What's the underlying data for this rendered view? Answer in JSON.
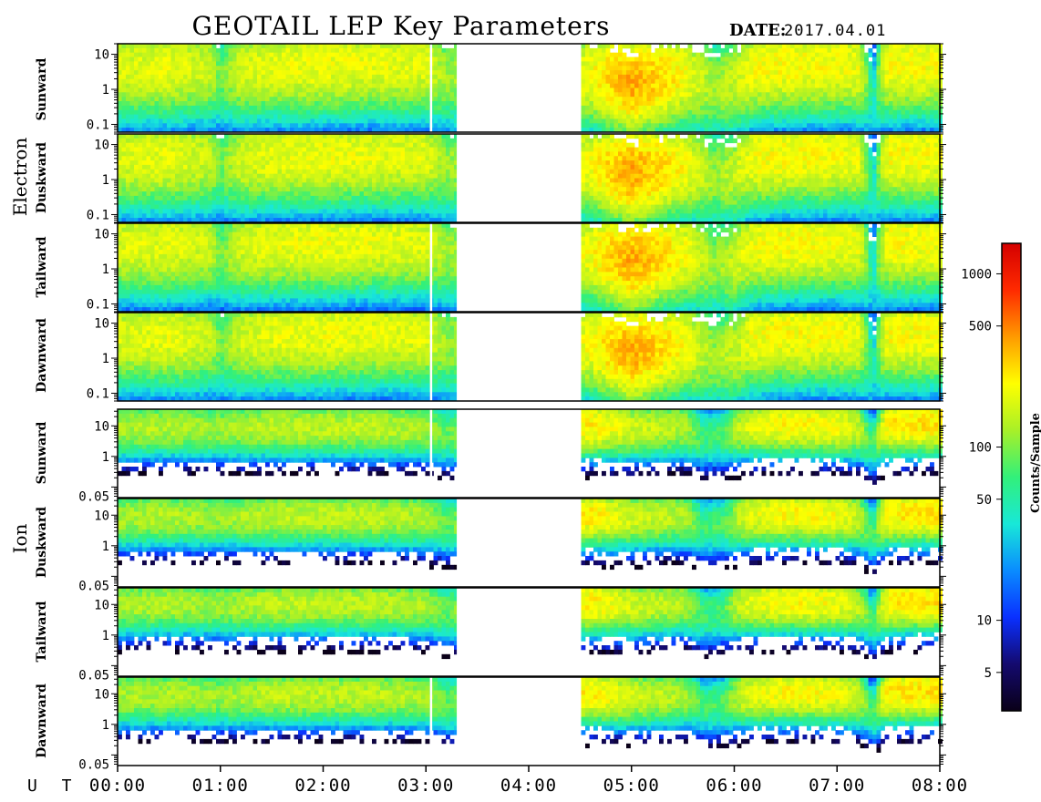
{
  "header": {
    "title": "GEOTAIL LEP Key Parameters",
    "date_label": "DATE:",
    "date_value": "2017.04.01"
  },
  "groups": [
    {
      "label": "Electron"
    },
    {
      "label": "Ion"
    }
  ],
  "panels": [
    {
      "group": "Electron",
      "label": "Sunward",
      "ticks": [
        "10",
        "1",
        "0.1"
      ],
      "tick_values": [
        10,
        1,
        0.1
      ],
      "ylim": [
        0.06,
        20
      ],
      "scale": "log"
    },
    {
      "group": "Electron",
      "label": "Duskward",
      "ticks": [
        "10",
        "1",
        "0.1"
      ],
      "tick_values": [
        10,
        1,
        0.1
      ],
      "ylim": [
        0.06,
        20
      ],
      "scale": "log"
    },
    {
      "group": "Electron",
      "label": "Tailward",
      "ticks": [
        "10",
        "1",
        "0.1"
      ],
      "tick_values": [
        10,
        1,
        0.1
      ],
      "ylim": [
        0.06,
        20
      ],
      "scale": "log"
    },
    {
      "group": "Electron",
      "label": "Dawnward",
      "ticks": [
        "10",
        "1",
        "0.1"
      ],
      "tick_values": [
        10,
        1,
        0.1
      ],
      "ylim": [
        0.06,
        20
      ],
      "scale": "log"
    },
    {
      "group": "Ion",
      "label": "Sunward",
      "ticks": [
        "10",
        "1",
        "0.05"
      ],
      "tick_values": [
        10,
        1,
        0.05
      ],
      "ylim": [
        0.045,
        35
      ],
      "scale": "log"
    },
    {
      "group": "Ion",
      "label": "Duskward",
      "ticks": [
        "10",
        "1",
        "0.05"
      ],
      "tick_values": [
        10,
        1,
        0.05
      ],
      "ylim": [
        0.045,
        35
      ],
      "scale": "log"
    },
    {
      "group": "Ion",
      "label": "Tailward",
      "ticks": [
        "10",
        "1",
        "0.05"
      ],
      "tick_values": [
        10,
        1,
        0.05
      ],
      "ylim": [
        0.045,
        35
      ],
      "scale": "log"
    },
    {
      "group": "Ion",
      "label": "Dawnward",
      "ticks": [
        "10",
        "1",
        "0.05"
      ],
      "tick_values": [
        10,
        1,
        0.05
      ],
      "ylim": [
        0.045,
        35
      ],
      "scale": "log"
    }
  ],
  "x_axis": {
    "prefix": "U T",
    "ticks": [
      "00:00",
      "01:00",
      "02:00",
      "03:00",
      "04:00",
      "05:00",
      "06:00",
      "07:00",
      "08:00"
    ],
    "range_hours": [
      0,
      8
    ]
  },
  "colorbar": {
    "label": "Counts/Sample",
    "ticks": [
      "1000",
      "500",
      "100",
      "50",
      "10",
      "5"
    ],
    "tick_values": [
      1000,
      500,
      100,
      50,
      10,
      5
    ],
    "range": [
      3,
      1500
    ],
    "scale": "log",
    "colors": [
      "#0a0018",
      "#140a6e",
      "#0a30ff",
      "#0a8cff",
      "#18e8d8",
      "#32f07a",
      "#a8f028",
      "#ffff00",
      "#ff9a00",
      "#ff2a00",
      "#d40000"
    ]
  },
  "chart_data": {
    "type": "heatmap",
    "title": "GEOTAIL LEP Key Parameters",
    "date": "2017.04.01",
    "x_range_hours": [
      0,
      8
    ],
    "data_gap_hours": [
      3.3,
      4.5
    ],
    "electron_gap_line_hours": 3.05,
    "ion_gap_line_hours": 3.05,
    "electron": {
      "profile_hours": [
        0,
        0.5,
        0.9,
        1.0,
        1.2,
        1.5,
        2.0,
        2.5,
        3.0,
        3.2,
        4.6,
        5.0,
        5.5,
        5.8,
        6.0,
        6.2,
        6.5,
        7.0,
        7.2,
        7.35,
        7.5,
        8.0
      ],
      "peak_energy": [
        4,
        4.2,
        3.8,
        2.2,
        3.6,
        4.5,
        4.8,
        5,
        4.5,
        2.5,
        2.5,
        1.5,
        2.5,
        1.2,
        1.5,
        4,
        5,
        5,
        4.5,
        0.3,
        5,
        5
      ],
      "peak_counts": [
        180,
        200,
        160,
        90,
        170,
        200,
        210,
        200,
        190,
        120,
        220,
        400,
        230,
        120,
        160,
        220,
        230,
        220,
        210,
        30,
        230,
        220
      ]
    },
    "ion": {
      "profile_hours": [
        0,
        0.5,
        1.0,
        1.5,
        2.0,
        2.5,
        3.0,
        3.2,
        4.6,
        5.0,
        5.5,
        5.7,
        5.9,
        6.1,
        6.5,
        7.0,
        7.2,
        7.35,
        7.5,
        8.0
      ],
      "peak_energy": [
        8,
        9,
        8,
        9,
        9,
        9,
        8,
        5,
        10,
        8,
        9,
        4,
        5,
        9,
        11,
        10,
        8,
        2,
        11,
        12
      ],
      "peak_counts": [
        130,
        140,
        120,
        150,
        150,
        150,
        130,
        90,
        260,
        170,
        140,
        70,
        80,
        180,
        240,
        220,
        160,
        60,
        260,
        280
      ]
    }
  }
}
